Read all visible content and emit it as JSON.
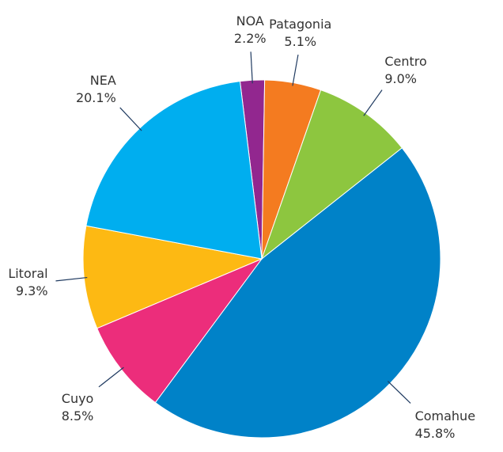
{
  "chart_data": {
    "type": "pie",
    "categories": [
      "NOA",
      "Patagonia",
      "Centro",
      "Comahue",
      "Cuyo",
      "Litoral",
      "NEA"
    ],
    "values": [
      2.2,
      5.1,
      9.0,
      45.8,
      8.5,
      9.3,
      20.1
    ],
    "value_labels": [
      "2.2%",
      "5.1%",
      "9.0%",
      "45.8%",
      "8.5%",
      "9.3%",
      "20.1%"
    ],
    "colors": [
      "#92278f",
      "#f47b20",
      "#8dc63f",
      "#0082c8",
      "#ec2d7b",
      "#fdb913",
      "#00aeef"
    ]
  }
}
